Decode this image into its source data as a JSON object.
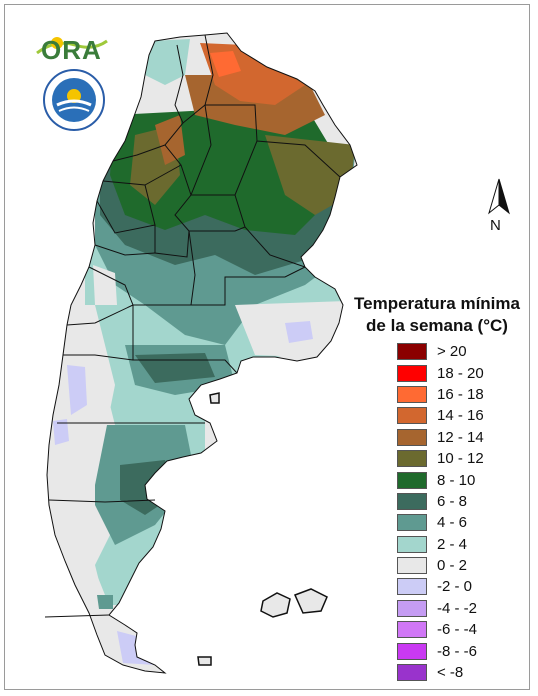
{
  "legend": {
    "title_line1": "Temperatura mínima",
    "title_line2": "de la semana (°C)",
    "items": [
      {
        "label": "> 20",
        "color": "#8b0000"
      },
      {
        "label": "18 - 20",
        "color": "#ff0000"
      },
      {
        "label": "16 - 18",
        "color": "#ff6a33"
      },
      {
        "label": "14 - 16",
        "color": "#d2672f"
      },
      {
        "label": "12 - 14",
        "color": "#a6652f"
      },
      {
        "label": "10 - 12",
        "color": "#6b6a2f"
      },
      {
        "label": "8 - 10",
        "color": "#1f6a2c"
      },
      {
        "label": "6 - 8",
        "color": "#3c6b5e"
      },
      {
        "label": "4 - 6",
        "color": "#5f9a91"
      },
      {
        "label": "2 - 4",
        "color": "#a3d6cd"
      },
      {
        "label": "0 - 2",
        "color": "#e8e8e8"
      },
      {
        "label": "-2 - 0",
        "color": "#ccccf6"
      },
      {
        "label": "-4 - -2",
        "color": "#c59cf3"
      },
      {
        "label": "-6 - -4",
        "color": "#d077f6"
      },
      {
        "label": "-8 - -6",
        "color": "#c939f2"
      },
      {
        "label": "< -8",
        "color": "#9933cc"
      }
    ]
  },
  "logos": {
    "ora_text": "ORA"
  },
  "compass": {
    "letter": "N"
  }
}
